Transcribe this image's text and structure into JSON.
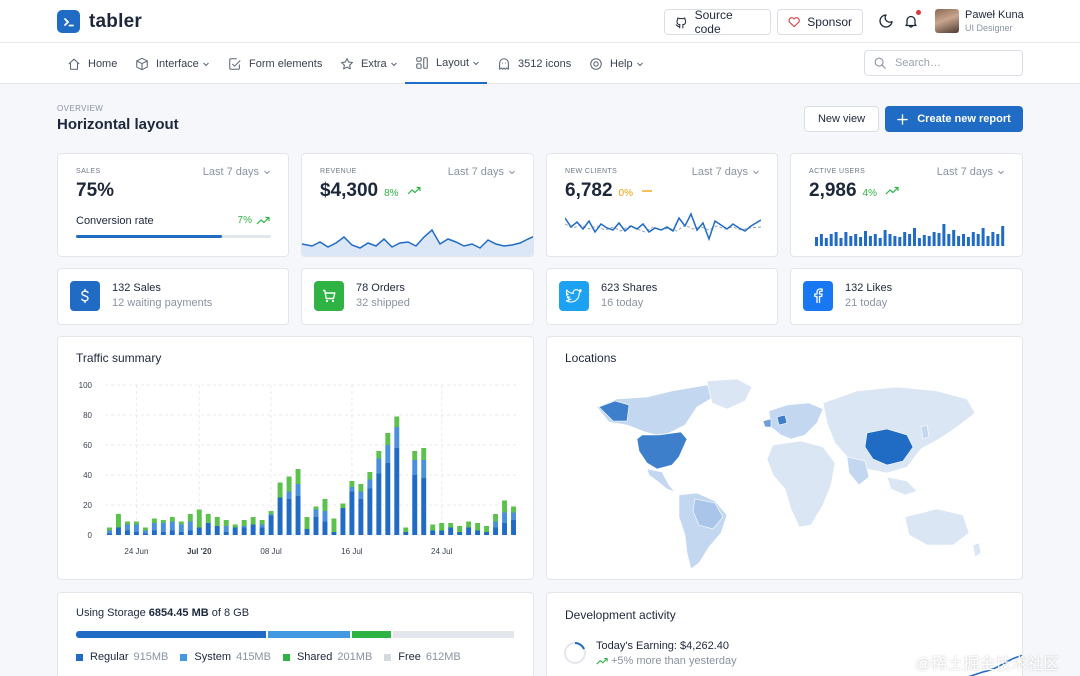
{
  "brand": {
    "name": "tabler"
  },
  "header": {
    "source_code": "Source code",
    "sponsor": "Sponsor",
    "user": {
      "name": "Paweł Kuna",
      "role": "UI Designer"
    }
  },
  "nav": {
    "items": [
      {
        "label": "Home",
        "icon": "home-icon",
        "chevron": false
      },
      {
        "label": "Interface",
        "icon": "package-icon",
        "chevron": true
      },
      {
        "label": "Form elements",
        "icon": "checkbox-icon",
        "chevron": false
      },
      {
        "label": "Extra",
        "icon": "star-icon",
        "chevron": true
      },
      {
        "label": "Layout",
        "icon": "layout-icon",
        "chevron": true,
        "active": true
      },
      {
        "label": "3512 icons",
        "icon": "ghost-icon",
        "chevron": false
      },
      {
        "label": "Help",
        "icon": "lifebuoy-icon",
        "chevron": true
      }
    ],
    "search_placeholder": "Search…"
  },
  "page": {
    "pretitle": "Overview",
    "title": "Horizontal layout",
    "new_view": "New view",
    "create_report": "Create new report"
  },
  "stats": [
    {
      "subheader": "Sales",
      "range": "Last 7 days",
      "value": "75%",
      "conversion_label": "Conversion rate",
      "conversion_delta": "7%",
      "progress": 0.75
    },
    {
      "subheader": "Revenue",
      "range": "Last 7 days",
      "value": "$4,300",
      "delta": "8%"
    },
    {
      "subheader": "New clients",
      "range": "Last 7 days",
      "value": "6,782",
      "delta": "0%"
    },
    {
      "subheader": "Active users",
      "range": "Last 7 days",
      "value": "2,986",
      "delta": "4%"
    }
  ],
  "mini_cards": [
    {
      "title": "132 Sales",
      "subtitle": "12 waiting payments",
      "icon": "currency-dollar-icon",
      "color": "#206bc4"
    },
    {
      "title": "78 Orders",
      "subtitle": "32 shipped",
      "icon": "shopping-cart-icon",
      "color": "#2fb344"
    },
    {
      "title": "623 Shares",
      "subtitle": "16 today",
      "icon": "twitter-icon",
      "color": "#1da1f2"
    },
    {
      "title": "132 Likes",
      "subtitle": "21 today",
      "icon": "facebook-icon",
      "color": "#1877f2"
    }
  ],
  "traffic": {
    "title": "Traffic summary",
    "chart_data": {
      "type": "bar",
      "stacked": true,
      "ylim": [
        0,
        100
      ],
      "y_ticks": [
        "0",
        "20",
        "40",
        "60",
        "80",
        "100"
      ],
      "x_tick_labels": [
        "24 Jun",
        "Jul '20",
        "08 Jul",
        "16 Jul",
        "24 Jul"
      ],
      "colors": {
        "dark": "#206bc4",
        "mid": "#4a90dc",
        "green": "#5cc24d"
      },
      "series": [
        {
          "values": [
            1,
            5,
            3,
            2,
            1,
            3,
            2,
            3,
            2,
            3,
            5,
            8,
            6,
            2,
            5,
            5,
            7,
            5,
            13,
            25,
            24,
            26,
            4,
            12,
            9,
            2,
            18,
            29,
            24,
            31,
            41,
            48,
            58,
            2,
            40,
            38,
            3,
            3,
            5,
            2,
            5,
            3,
            2,
            5,
            8,
            10
          ]
        },
        {
          "values": [
            2,
            0,
            4,
            5,
            2,
            5,
            6,
            6,
            5,
            6,
            0,
            0,
            0,
            4,
            0,
            1,
            0,
            2,
            1,
            0,
            5,
            8,
            0,
            5,
            7,
            0,
            0,
            3,
            5,
            6,
            10,
            12,
            14,
            0,
            10,
            12,
            0,
            0,
            0,
            0,
            0,
            0,
            0,
            4,
            7,
            5
          ]
        },
        {
          "values": [
            2,
            9,
            2,
            2,
            2,
            3,
            2,
            3,
            2,
            5,
            12,
            6,
            6,
            4,
            2,
            4,
            5,
            3,
            2,
            10,
            10,
            10,
            8,
            2,
            8,
            9,
            3,
            4,
            5,
            5,
            5,
            8,
            7,
            3,
            6,
            8,
            4,
            5,
            3,
            4,
            4,
            5,
            4,
            5,
            8,
            4
          ]
        }
      ]
    }
  },
  "locations": {
    "title": "Locations"
  },
  "storage": {
    "label": "Using Storage",
    "used": "6854.45 MB",
    "of_label": "of 8 GB",
    "segments": [
      {
        "name": "Regular",
        "value": "915MB",
        "fraction": 0.44,
        "color": "#206bc4"
      },
      {
        "name": "System",
        "value": "415MB",
        "fraction": 0.19,
        "color": "#4299e1"
      },
      {
        "name": "Shared",
        "value": "201MB",
        "fraction": 0.09,
        "color": "#2fb344"
      },
      {
        "name": "Free",
        "value": "612MB",
        "fraction": 0.28,
        "color": "#e3e6eb"
      }
    ]
  },
  "dev_activity": {
    "title": "Development activity",
    "earning": "Today's Earning: $4,262.40",
    "change": "+5% more than yesterday"
  },
  "watermark": "@稀土掘金技术社区"
}
